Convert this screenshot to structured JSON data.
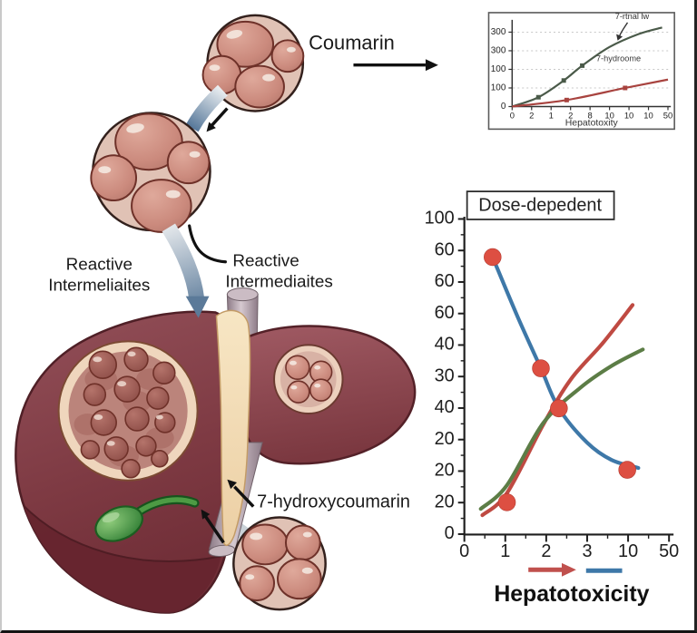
{
  "figure": {
    "coumarin_label": "Coumarin",
    "reactive_left": [
      "Reactive",
      "Intermeliaites"
    ],
    "reactive_right": [
      "Reactive",
      "Intermediaites"
    ],
    "hydroxycoumarin_label": "7-hydroxycoumarin"
  },
  "colors": {
    "liver_dark": "#6f2d36",
    "liver_light": "#96525b",
    "vesicle_membrane": "#e0c2b5",
    "vesicle_sphere": "#cf9186",
    "gallbladder_green": "#3f8f3a",
    "band_steel_blue": "#52779e",
    "vessel_mauve": "#a8949f",
    "chart_red": "#bf4a42",
    "chart_blue": "#3e78a8",
    "chart_green": "#5c7d46",
    "dot_red": "#dd4f42"
  },
  "chart_data": [
    {
      "type": "line",
      "position": "top-right",
      "title": "",
      "xlabel": "Hepatotoxity",
      "x_tick_labels": [
        "0",
        "2",
        "1",
        "2",
        "8",
        "10",
        "10",
        "10",
        "50"
      ],
      "y_tick_labels": [
        "300",
        "300",
        "100",
        "100",
        "0"
      ],
      "grid": "dashed-horizontal",
      "legend_position": "inside-top-right",
      "series": [
        {
          "name": "7-rtnal lw",
          "color": "#4a5a49",
          "marker": "square",
          "points": [
            [
              0,
              0
            ],
            [
              1.35,
              0.5
            ],
            [
              2.65,
              1.4
            ],
            [
              3.6,
              2.2
            ],
            [
              5,
              3.2
            ],
            [
              6.5,
              3.9
            ],
            [
              7.7,
              4.25
            ]
          ],
          "marker_points": [
            [
              1.35,
              0.5
            ],
            [
              2.65,
              1.4
            ],
            [
              3.6,
              2.2
            ]
          ]
        },
        {
          "name": "7-hydroome",
          "color": "#a8433f",
          "marker": "square",
          "points": [
            [
              0,
              0
            ],
            [
              2.8,
              0.35
            ],
            [
              5.8,
              1.0
            ],
            [
              8,
              1.45
            ]
          ],
          "marker_points": [
            [
              2.8,
              0.35
            ],
            [
              5.8,
              1.0
            ]
          ]
        }
      ]
    },
    {
      "type": "line+scatter",
      "position": "bottom-right",
      "title": "Dose-depedent",
      "xlabel": "Hepatotoxicity",
      "x_tick_labels": [
        "0",
        "1",
        "2",
        "3",
        "10",
        "50"
      ],
      "y_tick_labels": [
        "100",
        "60",
        "60",
        "60",
        "40",
        "30",
        "40",
        "20",
        "20",
        "20",
        "0"
      ],
      "grid": "off",
      "series": [
        {
          "name": "declining-blue-curve",
          "color": "#3e78a8",
          "points": [
            [
              0.69,
              8.79
            ],
            [
              1.3,
              6.9
            ],
            [
              1.87,
              5.26
            ],
            [
              2.31,
              3.99
            ],
            [
              3.0,
              2.9
            ],
            [
              3.6,
              2.35
            ],
            [
              4.25,
              2.1
            ]
          ]
        },
        {
          "name": "rising-red-curve",
          "color": "#bf4a42",
          "points": [
            [
              0.44,
              0.6
            ],
            [
              1.04,
              1.3
            ],
            [
              1.93,
              3.48
            ],
            [
              2.6,
              4.91
            ],
            [
              3.38,
              6.06
            ],
            [
              4.11,
              7.27
            ]
          ]
        },
        {
          "name": "rising-green-curve",
          "color": "#5c7d46",
          "points": [
            [
              0.4,
              0.8
            ],
            [
              1.04,
              1.55
            ],
            [
              1.93,
              3.53
            ],
            [
              2.82,
              4.63
            ],
            [
              3.6,
              5.34
            ],
            [
              4.36,
              5.86
            ]
          ]
        }
      ],
      "scatter": {
        "name": "red-dots",
        "color": "#dd4f42",
        "points": [
          [
            0.69,
            8.79
          ],
          [
            1.87,
            5.26
          ],
          [
            2.31,
            3.99
          ],
          [
            3.98,
            2.04
          ],
          [
            1.04,
            1.01
          ]
        ]
      },
      "legend": {
        "red_arrow": true,
        "blue_line": true
      }
    }
  ]
}
